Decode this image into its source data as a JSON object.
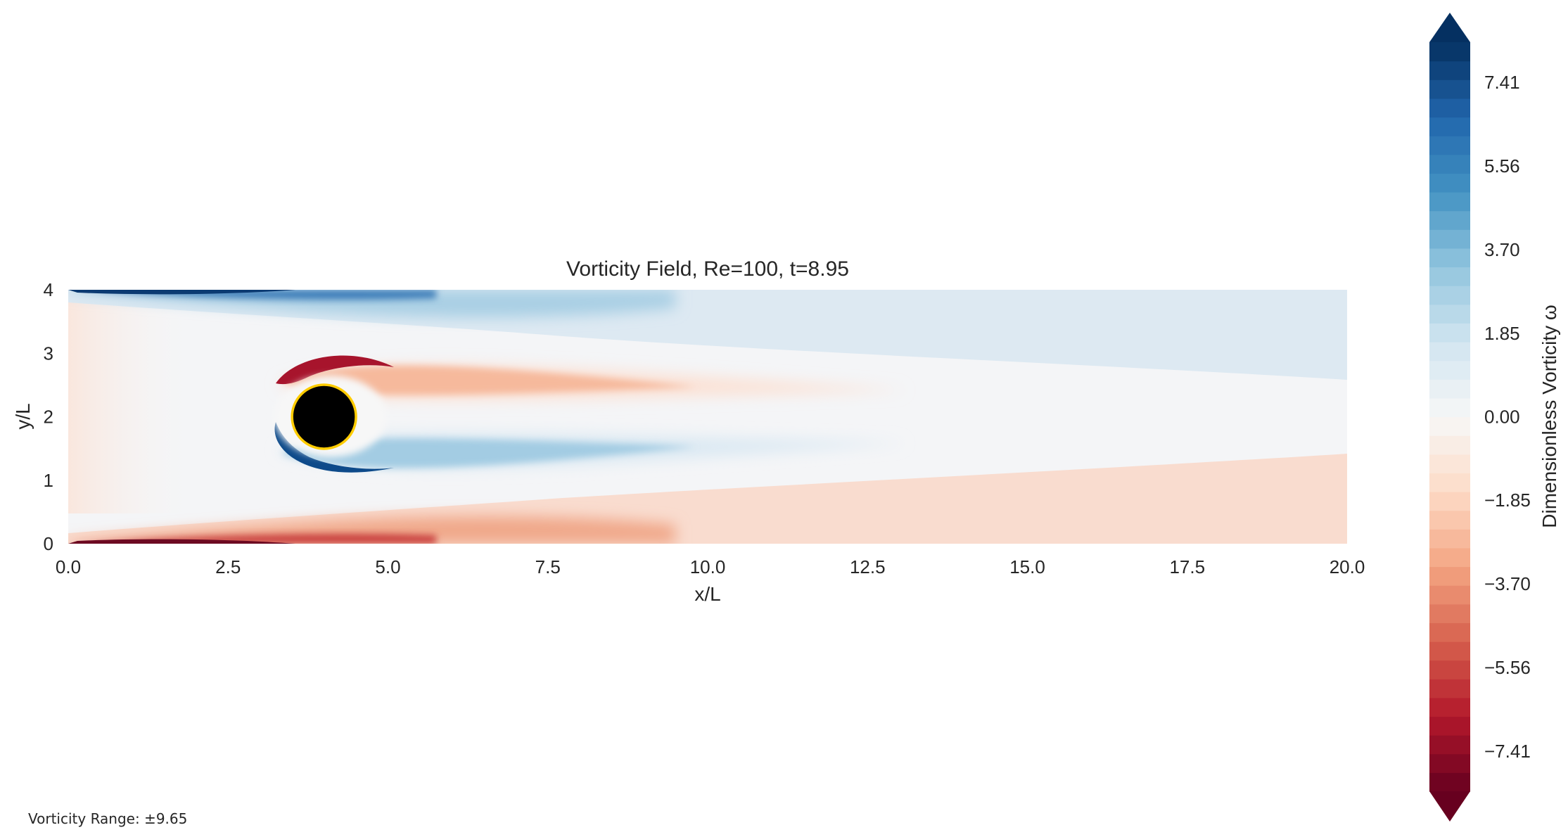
{
  "chart_data": {
    "type": "heatmap",
    "title": "Vorticity Field, Re=100, t=8.95",
    "xlabel": "x/L",
    "ylabel": "y/L",
    "xlim": [
      0,
      20
    ],
    "ylim": [
      0,
      4
    ],
    "xticks": [
      0,
      2.5,
      5,
      7.5,
      10,
      12.5,
      15,
      17.5,
      20
    ],
    "xtick_labels": [
      "0.0",
      "2.5",
      "5.0",
      "7.5",
      "10.0",
      "12.5",
      "15.0",
      "17.5",
      "20.0"
    ],
    "yticks": [
      0,
      1,
      2,
      3,
      4
    ],
    "ytick_labels": [
      "0",
      "1",
      "2",
      "3",
      "4"
    ],
    "grid": false,
    "colormap": "RdBu",
    "cylinder": {
      "center": [
        4,
        2
      ],
      "radius": 0.5,
      "fill": "#000000",
      "edge": "#ffcc00"
    },
    "colorbar": {
      "label": "Dimensionless Vorticity ω",
      "range": [
        -8.3,
        8.3
      ],
      "extend": "both",
      "ticks": [
        7.41,
        5.56,
        3.7,
        1.85,
        0.0,
        -1.85,
        -3.7,
        -5.56,
        -7.41
      ],
      "tick_labels": [
        "7.41",
        "5.56",
        "3.70",
        "1.85",
        "0.00",
        "−1.85",
        "−3.70",
        "−5.56",
        "−7.41"
      ]
    },
    "colors": {
      "dark_blue": "#053061",
      "blue": "#2166ac",
      "light_blue": "#92c5de",
      "neutral": "#f7f7f7",
      "light_red": "#f4a582",
      "red": "#b2182b",
      "dark_red": "#67001f"
    }
  },
  "footnote": "Vorticity Range: ±9.65"
}
